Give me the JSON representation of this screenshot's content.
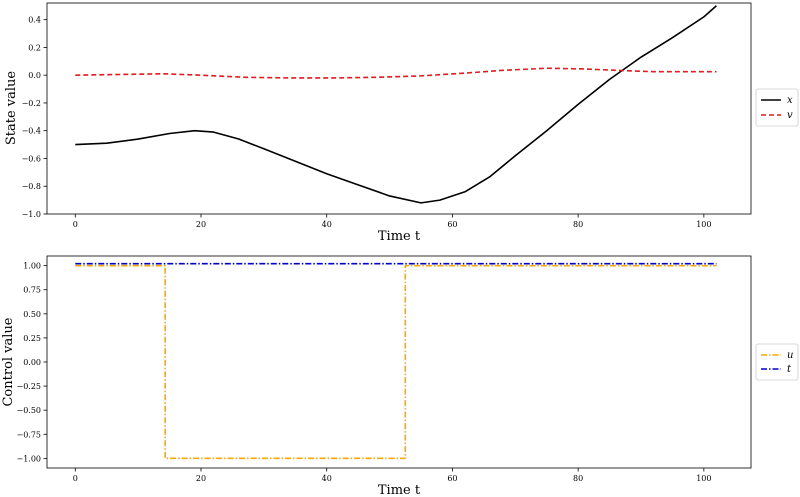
{
  "chart_data": [
    {
      "type": "line",
      "xlabel": "Time t",
      "ylabel": "State value",
      "xlim": [
        -4.5,
        107.5
      ],
      "ylim": [
        -1.0,
        0.52
      ],
      "xticks": [
        0,
        20,
        40,
        60,
        80,
        100
      ],
      "yticks": [
        -1.0,
        -0.8,
        -0.6,
        -0.4,
        -0.2,
        0.0,
        0.2,
        0.4
      ],
      "ytick_labels": [
        "−1.0",
        "−0.8",
        "−0.6",
        "−0.4",
        "−0.2",
        "0.0",
        "0.2",
        "0.4"
      ],
      "legend": "right",
      "series": [
        {
          "name": "x",
          "color": "#000000",
          "style": "solid",
          "points": [
            [
              0,
              -0.5
            ],
            [
              5,
              -0.49
            ],
            [
              10,
              -0.46
            ],
            [
              15,
              -0.42
            ],
            [
              19,
              -0.4
            ],
            [
              22,
              -0.41
            ],
            [
              26,
              -0.46
            ],
            [
              30,
              -0.53
            ],
            [
              35,
              -0.62
            ],
            [
              40,
              -0.71
            ],
            [
              45,
              -0.79
            ],
            [
              50,
              -0.87
            ],
            [
              55,
              -0.92
            ],
            [
              58,
              -0.9
            ],
            [
              62,
              -0.84
            ],
            [
              66,
              -0.73
            ],
            [
              70,
              -0.58
            ],
            [
              75,
              -0.4
            ],
            [
              80,
              -0.21
            ],
            [
              85,
              -0.03
            ],
            [
              90,
              0.13
            ],
            [
              95,
              0.27
            ],
            [
              100,
              0.42
            ],
            [
              102,
              0.5
            ]
          ]
        },
        {
          "name": "v",
          "color": "#e41a1c",
          "style": "dashed",
          "points": [
            [
              0,
              0.0
            ],
            [
              7,
              0.005
            ],
            [
              14,
              0.01
            ],
            [
              20,
              0.0
            ],
            [
              27,
              -0.015
            ],
            [
              34,
              -0.02
            ],
            [
              41,
              -0.02
            ],
            [
              48,
              -0.015
            ],
            [
              55,
              -0.005
            ],
            [
              62,
              0.015
            ],
            [
              68,
              0.035
            ],
            [
              75,
              0.05
            ],
            [
              81,
              0.045
            ],
            [
              86,
              0.035
            ],
            [
              92,
              0.025
            ],
            [
              98,
              0.025
            ],
            [
              102,
              0.025
            ]
          ]
        }
      ]
    },
    {
      "type": "line",
      "xlabel": "Time t",
      "ylabel": "Control value",
      "xlim": [
        -4.5,
        107.5
      ],
      "ylim": [
        -1.1,
        1.1
      ],
      "xticks": [
        0,
        20,
        40,
        60,
        80,
        100
      ],
      "yticks": [
        -1.0,
        -0.75,
        -0.5,
        -0.25,
        0.0,
        0.25,
        0.5,
        0.75,
        1.0
      ],
      "ytick_labels": [
        "−1.00",
        "−0.75",
        "−0.50",
        "−0.25",
        "0.00",
        "0.25",
        "0.50",
        "0.75",
        "1.00"
      ],
      "legend": "right",
      "series": [
        {
          "name": "u",
          "color": "#ffa500",
          "style": "dashdot",
          "points": [
            [
              0,
              1.0
            ],
            [
              14.3,
              1.0
            ],
            [
              14.3,
              -1.0
            ],
            [
              52.5,
              -1.0
            ],
            [
              52.5,
              1.0
            ],
            [
              102,
              1.0
            ]
          ]
        },
        {
          "name": "t",
          "color": "#0000cc",
          "style": "dashdot",
          "points": [
            [
              0,
              1.02
            ],
            [
              102,
              1.02
            ]
          ]
        }
      ]
    }
  ]
}
